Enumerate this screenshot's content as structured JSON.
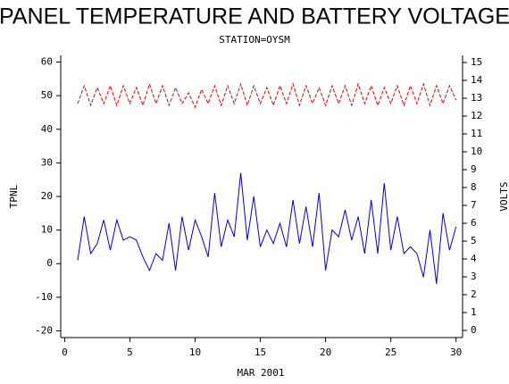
{
  "chart_data": {
    "type": "line",
    "title": "PANEL TEMPERATURE AND BATTERY VOLTAGE",
    "subtitle": "STATION=OYSM",
    "x_label": "MAR 2001",
    "y_label": "TPNL",
    "y2_label": "VOLTS",
    "x": [
      1,
      1.5,
      2,
      2.5,
      3,
      3.5,
      4,
      4.5,
      5,
      5.5,
      6,
      6.5,
      7,
      7.5,
      8,
      8.5,
      9,
      9.5,
      10,
      10.5,
      11,
      11.5,
      12,
      12.5,
      13,
      13.5,
      14,
      14.5,
      15,
      15.5,
      16,
      16.5,
      17,
      17.5,
      18,
      18.5,
      19,
      19.5,
      20,
      20.5,
      21,
      21.5,
      22,
      22.5,
      23,
      23.5,
      24,
      24.5,
      25,
      25.5,
      26,
      26.5,
      27,
      27.5,
      28,
      28.5,
      29,
      29.5,
      30
    ],
    "series": [
      {
        "name": "TPNL",
        "color": "#0000cc",
        "axis": "y",
        "values": [
          1,
          14,
          3,
          6,
          13,
          4,
          13,
          7,
          8,
          7,
          2,
          -2,
          3,
          1,
          12,
          -2,
          14,
          4,
          13,
          8,
          2,
          21,
          5,
          13,
          8,
          27,
          7,
          20,
          5,
          10,
          6,
          12,
          5,
          19,
          6,
          17,
          5,
          21,
          -2,
          10,
          8,
          16,
          7,
          14,
          3,
          19,
          3,
          24,
          4,
          14,
          3,
          5,
          3,
          -4,
          10,
          -6,
          15,
          4,
          11
        ]
      },
      {
        "name": "VOLTS",
        "color": "#dd0000",
        "axis": "y2",
        "dashed": true,
        "values": [
          12.7,
          13.7,
          12.6,
          13.6,
          12.7,
          13.7,
          12.6,
          13.7,
          12.7,
          13.6,
          12.6,
          13.8,
          12.7,
          13.7,
          12.6,
          13.6,
          12.7,
          13.3,
          12.5,
          13.5,
          12.7,
          13.7,
          12.6,
          13.7,
          12.7,
          13.8,
          12.6,
          13.7,
          12.7,
          13.6,
          12.6,
          13.7,
          12.7,
          13.8,
          12.6,
          13.7,
          12.7,
          13.6,
          12.6,
          13.7,
          12.7,
          13.7,
          12.6,
          13.8,
          12.7,
          13.7,
          12.6,
          13.6,
          12.7,
          13.7,
          12.6,
          13.7,
          12.7,
          13.8,
          12.6,
          13.7,
          12.7,
          13.7,
          12.9
        ]
      }
    ],
    "xlim": [
      -0.3,
      30.5
    ],
    "xticks": [
      0,
      5,
      10,
      15,
      20,
      25,
      30
    ],
    "ylim": [
      -22,
      62
    ],
    "yticks": [
      -20,
      -10,
      0,
      10,
      20,
      30,
      40,
      50,
      60
    ],
    "y2lim": [
      -0.4,
      15.4
    ],
    "y2ticks": [
      0,
      1,
      2,
      3,
      4,
      5,
      6,
      7,
      8,
      9,
      10,
      11,
      12,
      13,
      14,
      15
    ]
  }
}
